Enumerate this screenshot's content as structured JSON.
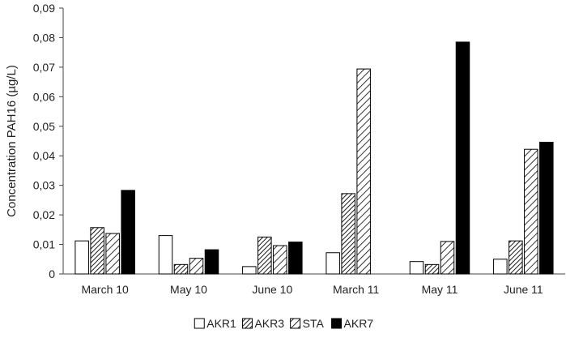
{
  "chart_data": {
    "type": "bar",
    "title": "",
    "xlabel": "",
    "ylabel": "Concentration PAH16 (µg/L)",
    "ylim": [
      0,
      0.09
    ],
    "yticks": [
      0,
      0.01,
      0.02,
      0.03,
      0.04,
      0.05,
      0.06,
      0.07,
      0.08,
      0.09
    ],
    "ytick_labels": [
      "0",
      "0,01",
      "0,02",
      "0,03",
      "0,04",
      "0,05",
      "0,06",
      "0,07",
      "0,08",
      "0,09"
    ],
    "grid": false,
    "legend_position": "bottom",
    "categories": [
      "March 10",
      "May 10",
      "June 10",
      "March 11",
      "May 11",
      "June 11"
    ],
    "series": [
      {
        "name": "AKR1",
        "fill": "white",
        "values": [
          0.0112,
          0.013,
          0.0025,
          0.0072,
          0.0042,
          0.005
        ]
      },
      {
        "name": "AKR3",
        "fill": "dense-hatch",
        "values": [
          0.0157,
          0.0032,
          0.0125,
          0.0272,
          0.0032,
          0.0112
        ]
      },
      {
        "name": "STA",
        "fill": "wide-hatch",
        "values": [
          0.0137,
          0.0053,
          0.0096,
          0.0694,
          0.011,
          0.0422
        ]
      },
      {
        "name": "AKR7",
        "fill": "black",
        "values": [
          0.0283,
          0.0082,
          0.0108,
          0.0,
          0.0785,
          0.0446
        ]
      }
    ]
  }
}
